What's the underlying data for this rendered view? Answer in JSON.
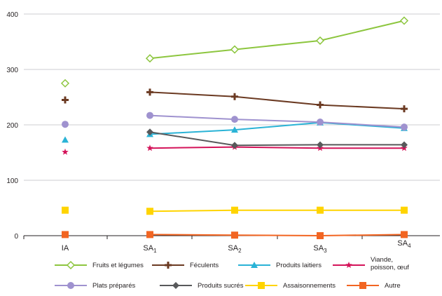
{
  "chart_data": {
    "type": "line",
    "categories": [
      "IA",
      "SA1",
      "SA2",
      "SA3",
      "SA4"
    ],
    "category_labels": [
      {
        "main": "IA",
        "sub": ""
      },
      {
        "main": "SA",
        "sub": "1"
      },
      {
        "main": "SA",
        "sub": "2"
      },
      {
        "main": "SA",
        "sub": "3"
      },
      {
        "main": "SA",
        "sub": "4"
      }
    ],
    "ylim": [
      0,
      400
    ],
    "yticks": [
      0,
      100,
      200,
      300,
      400
    ],
    "grid": "horizontal",
    "legend_position": "bottom",
    "series": [
      {
        "name": "Fruits et légumes",
        "color": "#8dc63f",
        "marker": "diamond-open",
        "values": [
          275,
          320,
          336,
          352,
          388
        ]
      },
      {
        "name": "Féculents",
        "color": "#6b3a22",
        "marker": "plus",
        "values": [
          245,
          259,
          251,
          236,
          229
        ]
      },
      {
        "name": "Produits laitiers",
        "color": "#2ab3d6",
        "marker": "triangle",
        "values": [
          173,
          183,
          191,
          204,
          194
        ]
      },
      {
        "name": "Viande, poisson, œuf",
        "color": "#d4145a",
        "marker": "star",
        "values": [
          151,
          158,
          160,
          158,
          158
        ]
      },
      {
        "name": "Plats préparés",
        "color": "#9f92cf",
        "marker": "circle",
        "values": [
          201,
          217,
          210,
          205,
          196
        ]
      },
      {
        "name": "Produits sucrés",
        "color": "#58595b",
        "marker": "diamond",
        "values": [
          null,
          187,
          163,
          164,
          164
        ]
      },
      {
        "name": "Assaisonnements",
        "color": "#ffd400",
        "marker": "square",
        "values": [
          46,
          44,
          46,
          46,
          46
        ]
      },
      {
        "name": "Autre",
        "color": "#f26522",
        "marker": "square",
        "values": [
          2,
          2,
          1,
          0,
          2
        ]
      }
    ],
    "legend_labels": [
      [
        "Fruits et légumes"
      ],
      [
        "Féculents"
      ],
      [
        "Produits laitiers"
      ],
      [
        "Viande,",
        "poisson, œuf"
      ],
      [
        "Plats préparés"
      ],
      [
        "Produits sucrés"
      ],
      [
        "Assaisonnements"
      ],
      [
        "Autre"
      ]
    ]
  }
}
